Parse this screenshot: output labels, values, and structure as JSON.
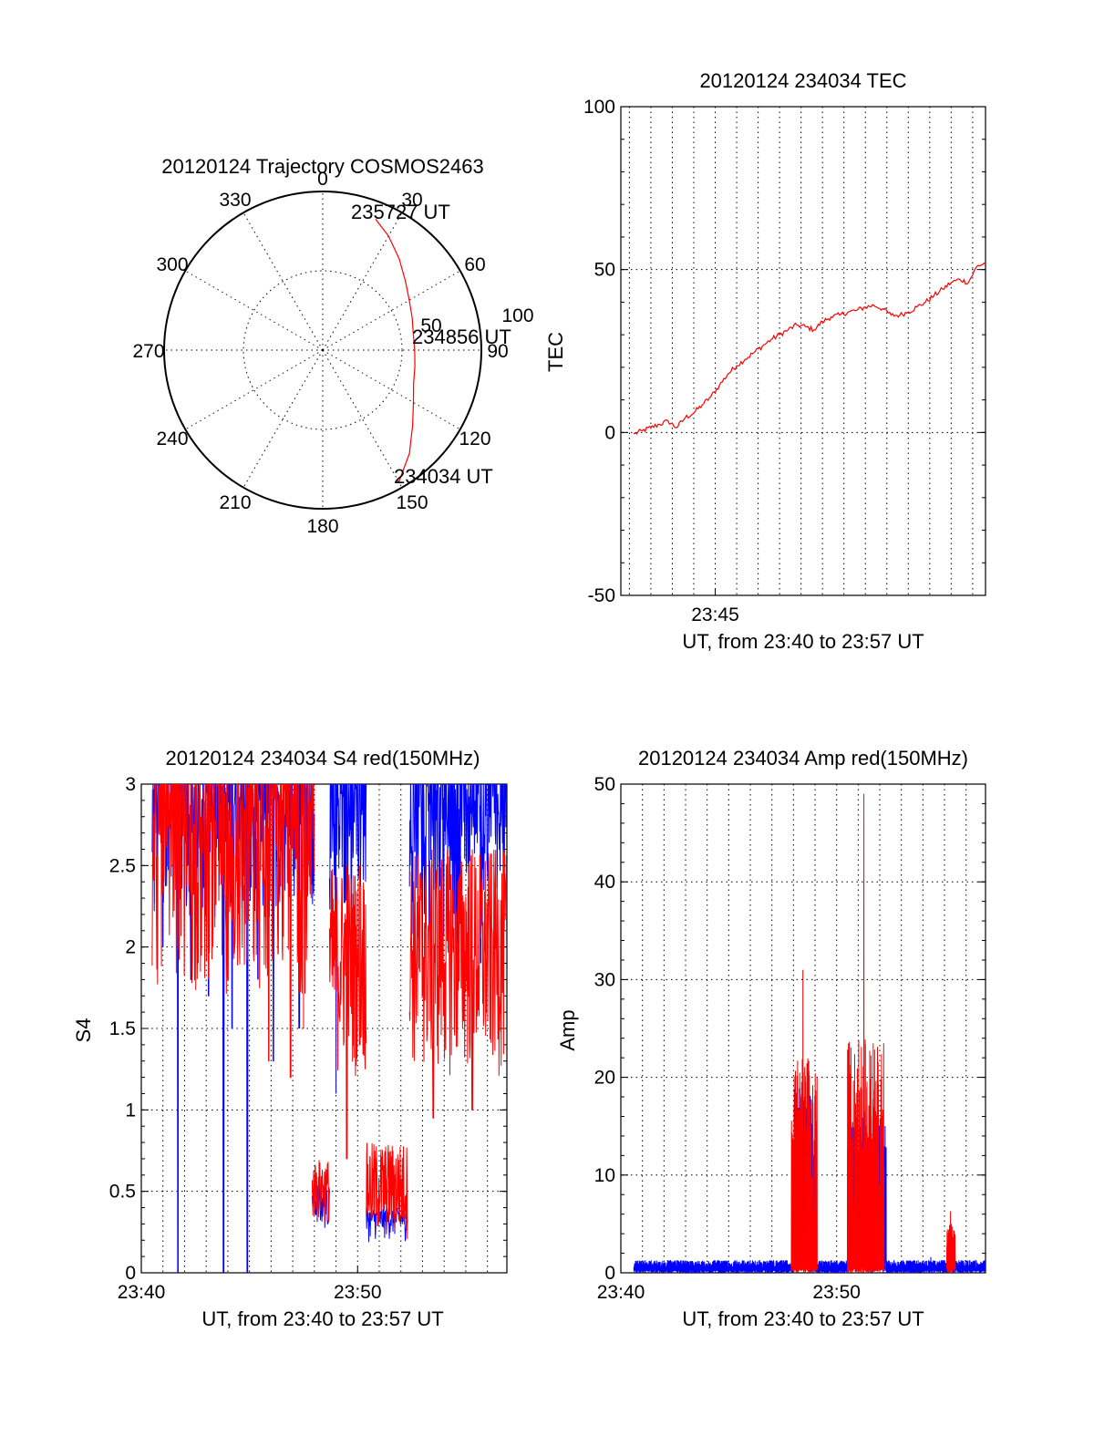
{
  "chart_data": [
    {
      "id": "trajectory",
      "type": "polar",
      "title": "20120124 Trajectory COSMOS2463",
      "angle_ticks": [
        "0",
        "30",
        "60",
        "90",
        "120",
        "150",
        "180",
        "210",
        "240",
        "270",
        "300",
        "330"
      ],
      "radius_ticks": [
        "50",
        "100"
      ],
      "rmax": 100,
      "grid": true,
      "series": [
        {
          "color": "#ff0000",
          "points": [
            {
              "az": 150,
              "r": 96
            },
            {
              "az": 140,
              "r": 85
            },
            {
              "az": 130,
              "r": 74
            },
            {
              "az": 120,
              "r": 66
            },
            {
              "az": 110,
              "r": 61
            },
            {
              "az": 100,
              "r": 59
            },
            {
              "az": 90,
              "r": 58
            },
            {
              "az": 80,
              "r": 58
            },
            {
              "az": 70,
              "r": 60
            },
            {
              "az": 60,
              "r": 63
            },
            {
              "az": 50,
              "r": 68
            },
            {
              "az": 40,
              "r": 75
            },
            {
              "az": 30,
              "r": 83
            },
            {
              "az": 22,
              "r": 89
            }
          ]
        }
      ],
      "annotations": [
        {
          "text": "235727 UT",
          "az": 20,
          "r": 95
        },
        {
          "text": "234856 UT",
          "az": 82,
          "r": 57
        },
        {
          "text": "234034 UT",
          "az": 150,
          "r": 94
        }
      ]
    },
    {
      "id": "tec",
      "type": "line",
      "title": "20120124 234034 TEC",
      "xlabel": "UT, from 23:40 to 23:57 UT",
      "ylabel": "TEC",
      "xlim": [
        40.6,
        57.6
      ],
      "ylim": [
        -50,
        100
      ],
      "yticks": [
        "-50",
        "0",
        "50",
        "100"
      ],
      "xticks": [
        {
          "value": 45,
          "label": "23:45"
        }
      ],
      "grid": true,
      "series": [
        {
          "color": "#ff0000",
          "x": [
            41.2,
            41.6,
            42.0,
            42.4,
            42.8,
            43.2,
            43.6,
            44.0,
            44.4,
            44.8,
            45.2,
            45.6,
            46.0,
            46.4,
            46.8,
            47.2,
            47.6,
            48.0,
            48.4,
            48.8,
            49.2,
            49.6,
            50.0,
            50.4,
            50.8,
            51.2,
            51.6,
            52.0,
            52.4,
            52.8,
            53.2,
            53.6,
            54.0,
            54.4,
            54.8,
            55.2,
            55.6,
            56.0,
            56.4,
            56.8,
            57.2,
            57.6
          ],
          "y": [
            -0.5,
            0.5,
            1.5,
            2.5,
            3.5,
            1.5,
            4.5,
            6.0,
            8.5,
            11.0,
            14.5,
            18.0,
            20.5,
            22.5,
            24.5,
            26.5,
            28.5,
            30.0,
            31.5,
            33.0,
            32.5,
            31.5,
            34.0,
            35.5,
            36.0,
            37.0,
            37.5,
            38.5,
            39.0,
            38.0,
            36.0,
            36.0,
            37.0,
            38.5,
            40.0,
            42.0,
            44.0,
            46.0,
            47.0,
            46.0,
            51.0,
            52.0
          ]
        }
      ]
    },
    {
      "id": "s4",
      "type": "line",
      "title": "20120124 234034 S4 red(150MHz)",
      "xlabel": "UT, from 23:40 to 23:57 UT",
      "ylabel": "S4",
      "xlim": [
        40.0,
        56.9
      ],
      "ylim": [
        0,
        3
      ],
      "yticks": [
        "0",
        "0.5",
        "1",
        "1.5",
        "2",
        "2.5",
        "3"
      ],
      "xticks": [
        {
          "value": 40,
          "label": "23:40"
        },
        {
          "value": 50,
          "label": "23:50"
        }
      ],
      "grid": true,
      "series": [
        {
          "color": "#0000ff",
          "segments": [
            {
              "start": 40.5,
              "end": 48.0,
              "low": 2.05,
              "high": 3.0,
              "dips": [
                [
                  41.0,
                  2.0
                ],
                [
                  41.7,
                  0.0
                ],
                [
                  42.3,
                  1.8
                ],
                [
                  43.1,
                  1.7
                ],
                [
                  43.8,
                  0.0
                ],
                [
                  44.2,
                  1.5
                ],
                [
                  44.9,
                  0.0
                ],
                [
                  45.4,
                  1.8
                ],
                [
                  46.1,
                  1.3
                ],
                [
                  47.3,
                  1.5
                ]
              ]
            },
            {
              "start": 47.9,
              "end": 48.7,
              "low": 0.22,
              "high": 0.55,
              "dips": []
            },
            {
              "start": 48.7,
              "end": 50.4,
              "low": 2.1,
              "high": 3.0,
              "dips": [
                [
                  49.0,
                  1.1
                ],
                [
                  49.7,
                  1.9
                ]
              ]
            },
            {
              "start": 50.4,
              "end": 52.3,
              "low": 0.18,
              "high": 0.4,
              "dips": []
            },
            {
              "start": 52.4,
              "end": 56.9,
              "low": 2.0,
              "high": 3.0,
              "dips": [
                [
                  53.0,
                  1.7
                ],
                [
                  54.6,
                  1.6
                ],
                [
                  55.7,
                  1.9
                ]
              ]
            }
          ]
        },
        {
          "color": "#ff0000",
          "segments": [
            {
              "start": 40.5,
              "end": 48.0,
              "low": 1.7,
              "high": 3.0,
              "dips": [
                [
                  44.0,
                  1.8
                ],
                [
                  45.9,
                  1.3
                ],
                [
                  46.9,
                  1.2
                ],
                [
                  47.5,
                  1.5
                ]
              ]
            },
            {
              "start": 47.9,
              "end": 48.7,
              "low": 0.3,
              "high": 0.7,
              "dips": []
            },
            {
              "start": 48.7,
              "end": 50.4,
              "low": 1.2,
              "high": 2.5,
              "dips": [
                [
                  49.5,
                  0.7
                ],
                [
                  50.1,
                  1.4
                ]
              ]
            },
            {
              "start": 50.4,
              "end": 52.3,
              "low": 0.2,
              "high": 0.8,
              "dips": []
            },
            {
              "start": 52.4,
              "end": 56.9,
              "low": 1.2,
              "high": 2.6,
              "dips": [
                [
                  53.5,
                  0.95
                ],
                [
                  55.3,
                  1.0
                ]
              ]
            }
          ]
        }
      ]
    },
    {
      "id": "amp",
      "type": "line",
      "title": "20120124 234034 Amp red(150MHz)",
      "xlabel": "UT, from 23:40 to 23:57 UT",
      "ylabel": "Amp",
      "xlim": [
        40.0,
        56.9
      ],
      "ylim": [
        0,
        50
      ],
      "yticks": [
        "0",
        "10",
        "20",
        "30",
        "40",
        "50"
      ],
      "xticks": [
        {
          "value": 40,
          "label": "23:40"
        },
        {
          "value": 50,
          "label": "23:50"
        }
      ],
      "grid": true,
      "series": [
        {
          "color": "#0000ff",
          "segments": [
            {
              "start": 40.6,
              "end": 48.0,
              "low": 0.3,
              "high": 1.3,
              "peak": 1.6
            },
            {
              "start": 48.0,
              "end": 49.0,
              "low": 2.0,
              "high": 19.0,
              "peak": 20.5
            },
            {
              "start": 49.0,
              "end": 50.5,
              "low": 0.3,
              "high": 1.3,
              "peak": 1.6
            },
            {
              "start": 50.5,
              "end": 52.3,
              "low": 2.0,
              "high": 16.0,
              "peak": 16.5
            },
            {
              "start": 52.3,
              "end": 56.9,
              "low": 0.3,
              "high": 1.3,
              "peak": 1.6
            }
          ]
        },
        {
          "color": "#ff0000",
          "segments": [
            {
              "start": 47.9,
              "end": 49.1,
              "low": 0.5,
              "high": 22.0,
              "peak": 31.0
            },
            {
              "start": 50.5,
              "end": 52.2,
              "low": 0.5,
              "high": 24.0,
              "peak": 49.0
            },
            {
              "start": 55.1,
              "end": 55.5,
              "low": 0.5,
              "high": 5.0,
              "peak": 6.3
            }
          ]
        }
      ]
    }
  ]
}
